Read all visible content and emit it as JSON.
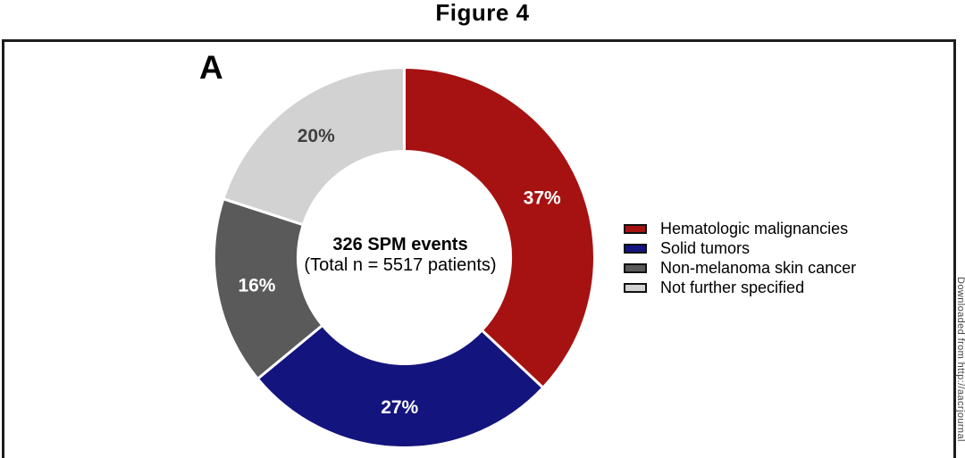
{
  "page": {
    "title": "Figure 4"
  },
  "panel": {
    "label": "A"
  },
  "watermark": {
    "text": "Downloaded from http://aacrjournal"
  },
  "chart_data": {
    "type": "donut",
    "title": "Figure 4",
    "panel": "A",
    "center_label": {
      "line1": "326 SPM events",
      "line2": "(Total n = 5517 patients)"
    },
    "units": "%",
    "start_angle_deg": 0,
    "direction": "clockwise",
    "inner_radius_ratio": 0.56,
    "legend_position": "right",
    "segments": [
      {
        "label": "Hematologic malignancies",
        "value": 37,
        "display": "37%",
        "color": "#a61212",
        "text_color": "#ffffff"
      },
      {
        "label": "Solid tumors",
        "value": 27,
        "display": "27%",
        "color": "#14147e",
        "text_color": "#ffffff"
      },
      {
        "label": "Non-melanoma skin cancer",
        "value": 16,
        "display": "16%",
        "color": "#5a5a5a",
        "text_color": "#ffffff"
      },
      {
        "label": "Not further specified",
        "value": 20,
        "display": "20%",
        "color": "#d2d2d2",
        "text_color": "#3f3f3f"
      }
    ]
  }
}
